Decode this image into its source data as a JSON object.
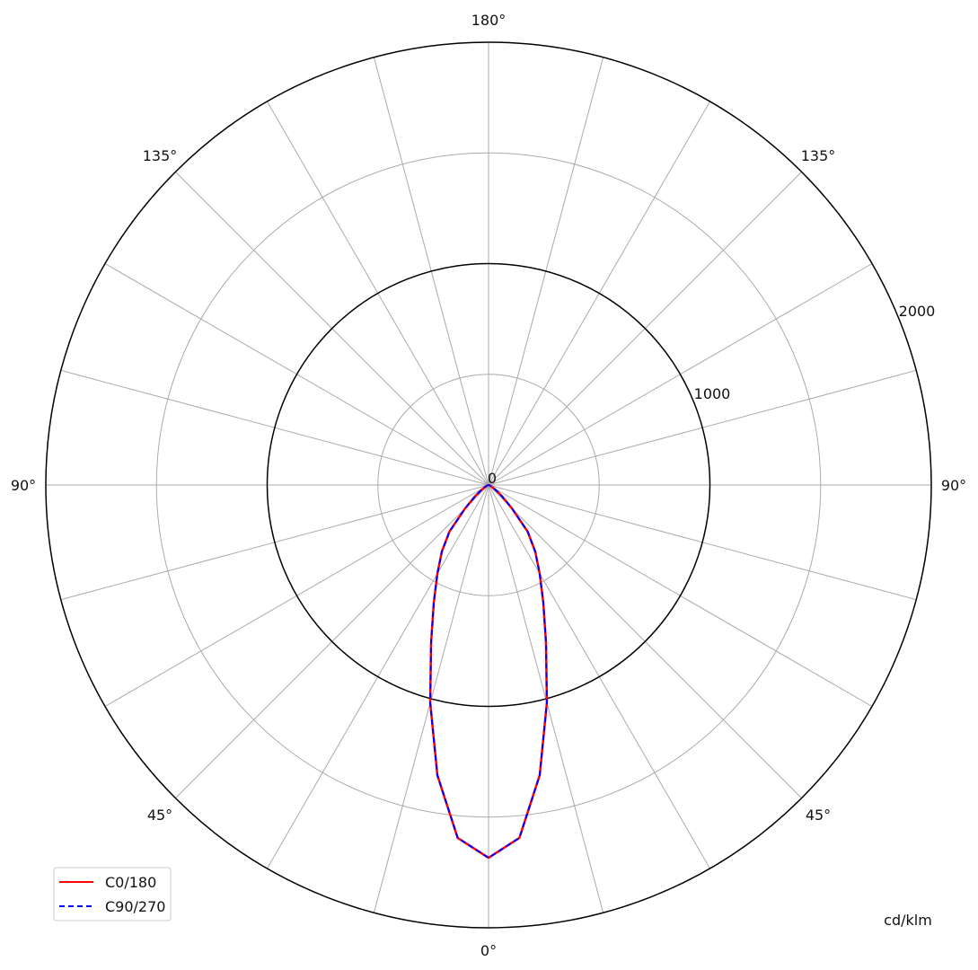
{
  "chart_data": {
    "type": "polar-line",
    "title": "",
    "unit_label": "cd/klm",
    "radial_range": [
      0,
      2000
    ],
    "radial_grid": [
      500,
      1000,
      1500,
      2000
    ],
    "radial_tick_labels": [
      "0",
      "1000",
      "2000"
    ],
    "angle_grid_step_deg": 15,
    "angle_tick_labels": {
      "bottom": "0°",
      "left": "90°",
      "right": "90°",
      "top": "180°",
      "lower_left": "45°",
      "lower_right": "45°",
      "upper_left": "135°",
      "upper_right": "135°"
    },
    "grid": true,
    "legend_position": "bottom-left",
    "angles_deg": [
      0,
      5,
      10,
      15,
      20,
      25,
      30,
      35,
      40,
      45,
      50,
      55,
      60,
      65,
      70,
      75,
      80,
      85,
      90
    ],
    "series": [
      {
        "name": "C0/180",
        "color": "#ff0000",
        "style": "solid",
        "values": [
          1684,
          1600,
          1331,
          1018,
          759,
          585,
          462,
          368,
          275,
          150,
          80,
          40,
          20,
          10,
          5,
          2,
          0,
          0,
          0
        ]
      },
      {
        "name": "C90/270",
        "color": "#0000ff",
        "style": "dashed",
        "values": [
          1684,
          1600,
          1331,
          1018,
          759,
          585,
          462,
          368,
          275,
          150,
          80,
          40,
          20,
          10,
          5,
          2,
          0,
          0,
          0
        ]
      }
    ]
  }
}
